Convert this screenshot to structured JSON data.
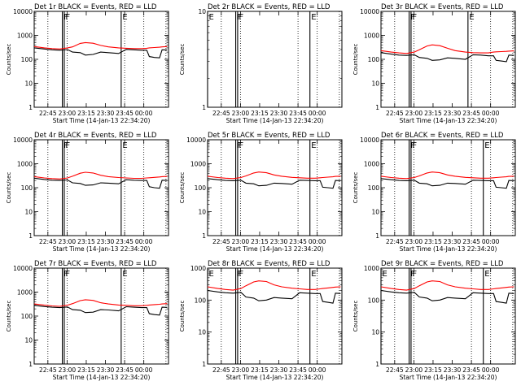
{
  "figure": {
    "xlabel": "Start Time (14-Jan-13 22:34:20)",
    "ylabel": "Counts/sec",
    "legend_note": "BLACK = Events, RED = LLD",
    "x_ticks": [
      "22:45",
      "23:00",
      "23:15",
      "23:30",
      "23:45",
      "00:00"
    ],
    "series_colors": {
      "events": "#000000",
      "lld": "#ff0000"
    }
  },
  "chart_data": [
    {
      "type": "line",
      "title": "Det 1r BLACK = Events, RED = LLD",
      "x_range_min": [
        0,
        105
      ],
      "ylim": [
        1,
        10000
      ],
      "yscale": "log",
      "y_ticks": [
        "1",
        "10",
        "100",
        "1000",
        "10000"
      ],
      "x": [
        0,
        8,
        14,
        20,
        26,
        30,
        36,
        40,
        46,
        52,
        58,
        66,
        72,
        78,
        84,
        88,
        90,
        94,
        98,
        100,
        104
      ],
      "series": [
        {
          "name": "Events",
          "values": [
            300,
            270,
            250,
            240,
            255,
            200,
            190,
            150,
            160,
            200,
            190,
            175,
            260,
            250,
            240,
            240,
            130,
            120,
            115,
            250,
            245
          ]
        },
        {
          "name": "LLD",
          "values": [
            340,
            300,
            280,
            270,
            300,
            330,
            460,
            500,
            470,
            380,
            330,
            300,
            290,
            280,
            280,
            290,
            300,
            310,
            320,
            330,
            340
          ]
        }
      ],
      "markers": [
        {
          "label": "F",
          "x_min": 22,
          "style": "solid"
        },
        {
          "label": "F",
          "x_min": 23.5,
          "style": "solid"
        },
        {
          "label": "E",
          "x_min": 68,
          "style": "solid"
        }
      ],
      "dotted_x_min": [
        10.7,
        25.7,
        70.7,
        85.7,
        103
      ]
    },
    {
      "type": "line",
      "title": "Det 2r BLACK = Events, RED = LLD",
      "x_range_min": [
        0,
        105
      ],
      "ylim": [
        1,
        10
      ],
      "yscale": "log",
      "y_ticks": [
        "1",
        "10"
      ],
      "x": [],
      "series": [],
      "markers": [
        {
          "label": "E",
          "x_min": 0,
          "style": "solid"
        },
        {
          "label": "F",
          "x_min": 22,
          "style": "solid"
        },
        {
          "label": "F",
          "x_min": 23.5,
          "style": "solid"
        },
        {
          "label": "E",
          "x_min": 80,
          "style": "solid"
        }
      ],
      "dotted_x_min": [
        10.7,
        25.7,
        70.7,
        85.7,
        103
      ]
    },
    {
      "type": "line",
      "title": "Det 3r BLACK = Events, RED = LLD",
      "x_range_min": [
        0,
        105
      ],
      "ylim": [
        1,
        10000
      ],
      "yscale": "log",
      "y_ticks": [
        "1",
        "10",
        "100",
        "1000",
        "10000"
      ],
      "x": [
        0,
        8,
        14,
        20,
        26,
        30,
        36,
        40,
        46,
        52,
        58,
        66,
        72,
        78,
        84,
        88,
        90,
        94,
        98,
        100,
        104
      ],
      "series": [
        {
          "name": "Events",
          "values": [
            190,
            165,
            150,
            145,
            155,
            120,
            110,
            90,
            95,
            115,
            110,
            100,
            155,
            150,
            140,
            140,
            90,
            85,
            80,
            150,
            145
          ]
        },
        {
          "name": "LLD",
          "values": [
            230,
            200,
            185,
            175,
            200,
            250,
            360,
            400,
            370,
            290,
            230,
            200,
            190,
            185,
            185,
            200,
            205,
            210,
            215,
            220,
            225
          ]
        }
      ],
      "markers": [
        {
          "label": "F",
          "x_min": 22,
          "style": "solid"
        },
        {
          "label": "F",
          "x_min": 23.5,
          "style": "solid"
        },
        {
          "label": "E",
          "x_min": 68,
          "style": "solid"
        }
      ],
      "dotted_x_min": [
        10.7,
        25.7,
        70.7,
        85.7,
        103
      ]
    },
    {
      "type": "line",
      "title": "Det 4r BLACK = Events, RED = LLD",
      "x_range_min": [
        0,
        105
      ],
      "ylim": [
        1,
        10000
      ],
      "yscale": "log",
      "y_ticks": [
        "1",
        "10",
        "100",
        "1000",
        "10000"
      ],
      "x": [
        0,
        8,
        14,
        20,
        26,
        30,
        36,
        40,
        46,
        52,
        58,
        66,
        72,
        78,
        84,
        88,
        90,
        94,
        98,
        100,
        104
      ],
      "series": [
        {
          "name": "Events",
          "values": [
            250,
            220,
            205,
            200,
            210,
            160,
            150,
            125,
            130,
            160,
            155,
            145,
            215,
            205,
            200,
            200,
            110,
            100,
            95,
            205,
            200
          ]
        },
        {
          "name": "LLD",
          "values": [
            290,
            255,
            240,
            230,
            255,
            300,
            400,
            440,
            410,
            330,
            290,
            265,
            255,
            245,
            245,
            255,
            260,
            270,
            280,
            290,
            295
          ]
        }
      ],
      "markers": [
        {
          "label": "F",
          "x_min": 22,
          "style": "solid"
        },
        {
          "label": "F",
          "x_min": 23.5,
          "style": "solid"
        },
        {
          "label": "E",
          "x_min": 68,
          "style": "solid"
        }
      ],
      "dotted_x_min": [
        10.7,
        25.7,
        70.7,
        85.7,
        103
      ]
    },
    {
      "type": "line",
      "title": "Det 5r BLACK = Events, RED = LLD",
      "x_range_min": [
        0,
        105
      ],
      "ylim": [
        1,
        10000
      ],
      "yscale": "log",
      "y_ticks": [
        "1",
        "10",
        "100",
        "1000",
        "10000"
      ],
      "x": [
        0,
        8,
        14,
        20,
        26,
        30,
        36,
        40,
        46,
        52,
        58,
        66,
        72,
        78,
        84,
        88,
        90,
        94,
        98,
        100,
        104
      ],
      "series": [
        {
          "name": "Events",
          "values": [
            240,
            215,
            200,
            195,
            205,
            155,
            145,
            120,
            125,
            155,
            150,
            140,
            205,
            200,
            195,
            195,
            105,
            100,
            95,
            200,
            195
          ]
        },
        {
          "name": "LLD",
          "values": [
            300,
            265,
            250,
            240,
            265,
            310,
            410,
            450,
            420,
            340,
            300,
            270,
            260,
            250,
            250,
            260,
            265,
            275,
            285,
            295,
            300
          ]
        }
      ],
      "markers": [
        {
          "label": "F",
          "x_min": 22,
          "style": "solid"
        },
        {
          "label": "F",
          "x_min": 23.5,
          "style": "solid"
        },
        {
          "label": "E",
          "x_min": 80,
          "style": "solid"
        }
      ],
      "dotted_x_min": [
        10.7,
        25.7,
        70.7,
        85.7,
        103
      ]
    },
    {
      "type": "line",
      "title": "Det 6r BLACK = Events, RED = LLD",
      "x_range_min": [
        0,
        105
      ],
      "ylim": [
        1,
        10000
      ],
      "yscale": "log",
      "y_ticks": [
        "1",
        "10",
        "100",
        "1000",
        "10000"
      ],
      "x": [
        0,
        8,
        14,
        20,
        26,
        30,
        36,
        40,
        46,
        52,
        58,
        66,
        72,
        78,
        84,
        88,
        90,
        94,
        98,
        100,
        104
      ],
      "series": [
        {
          "name": "Events",
          "values": [
            240,
            215,
            200,
            195,
            205,
            155,
            145,
            120,
            125,
            155,
            150,
            140,
            205,
            200,
            195,
            195,
            105,
            100,
            95,
            200,
            195
          ]
        },
        {
          "name": "LLD",
          "values": [
            300,
            265,
            250,
            240,
            265,
            310,
            410,
            450,
            420,
            340,
            300,
            270,
            260,
            250,
            250,
            260,
            265,
            275,
            285,
            295,
            300
          ]
        }
      ],
      "markers": [
        {
          "label": "F",
          "x_min": 22,
          "style": "solid"
        },
        {
          "label": "F",
          "x_min": 23.5,
          "style": "solid"
        },
        {
          "label": "E",
          "x_min": 80,
          "style": "solid"
        }
      ],
      "dotted_x_min": [
        10.7,
        25.7,
        70.7,
        85.7,
        103
      ]
    },
    {
      "type": "line",
      "title": "Det 7r BLACK = Events, RED = LLD",
      "x_range_min": [
        0,
        105
      ],
      "ylim": [
        1,
        10000
      ],
      "yscale": "log",
      "y_ticks": [
        "1",
        "10",
        "100",
        "1000",
        "10000"
      ],
      "x": [
        0,
        8,
        14,
        20,
        26,
        30,
        36,
        40,
        46,
        52,
        58,
        66,
        72,
        78,
        84,
        88,
        90,
        94,
        98,
        100,
        104
      ],
      "series": [
        {
          "name": "Events",
          "values": [
            280,
            250,
            235,
            225,
            240,
            185,
            175,
            140,
            145,
            185,
            180,
            165,
            245,
            235,
            225,
            225,
            125,
            115,
            110,
            235,
            230
          ]
        },
        {
          "name": "LLD",
          "values": [
            320,
            285,
            265,
            255,
            285,
            330,
            440,
            480,
            450,
            360,
            320,
            290,
            280,
            270,
            270,
            280,
            290,
            300,
            310,
            320,
            330
          ]
        }
      ],
      "markers": [
        {
          "label": "F",
          "x_min": 22,
          "style": "solid"
        },
        {
          "label": "F",
          "x_min": 23.5,
          "style": "solid"
        },
        {
          "label": "E",
          "x_min": 68,
          "style": "solid"
        }
      ],
      "dotted_x_min": [
        10.7,
        25.7,
        70.7,
        85.7,
        103
      ]
    },
    {
      "type": "line",
      "title": "Det 8r BLACK = Events, RED = LLD",
      "x_range_min": [
        0,
        105
      ],
      "ylim": [
        1,
        1000
      ],
      "yscale": "log",
      "y_ticks": [
        "1",
        "10",
        "100",
        "1000"
      ],
      "x": [
        0,
        8,
        14,
        20,
        26,
        30,
        36,
        40,
        46,
        52,
        58,
        66,
        72,
        78,
        84,
        88,
        90,
        94,
        98,
        100,
        104
      ],
      "series": [
        {
          "name": "Events",
          "values": [
            200,
            180,
            170,
            165,
            175,
            125,
            115,
            95,
            100,
            120,
            115,
            110,
            170,
            165,
            160,
            160,
            90,
            85,
            80,
            165,
            160
          ]
        },
        {
          "name": "LLD",
          "values": [
            260,
            230,
            215,
            205,
            230,
            280,
            370,
            400,
            380,
            300,
            260,
            235,
            225,
            215,
            215,
            225,
            230,
            240,
            250,
            255,
            260
          ]
        }
      ],
      "markers": [
        {
          "label": "E",
          "x_min": 0,
          "style": "solid"
        },
        {
          "label": "F",
          "x_min": 22,
          "style": "solid"
        },
        {
          "label": "F",
          "x_min": 23.5,
          "style": "solid"
        },
        {
          "label": "E",
          "x_min": 80,
          "style": "solid"
        }
      ],
      "dotted_x_min": [
        10.7,
        25.7,
        70.7,
        85.7,
        103
      ]
    },
    {
      "type": "line",
      "title": "Det 9r BLACK = Events, RED = LLD",
      "x_range_min": [
        0,
        105
      ],
      "ylim": [
        1,
        1000
      ],
      "yscale": "log",
      "y_ticks": [
        "1",
        "10",
        "100",
        "1000"
      ],
      "x": [
        0,
        8,
        14,
        20,
        26,
        30,
        36,
        40,
        46,
        52,
        58,
        66,
        72,
        78,
        84,
        88,
        90,
        94,
        98,
        100,
        104
      ],
      "series": [
        {
          "name": "Events",
          "values": [
            200,
            180,
            170,
            165,
            175,
            125,
            115,
            95,
            100,
            120,
            115,
            110,
            170,
            165,
            160,
            160,
            90,
            85,
            80,
            165,
            160
          ]
        },
        {
          "name": "LLD",
          "values": [
            260,
            230,
            215,
            205,
            230,
            280,
            370,
            400,
            380,
            300,
            260,
            235,
            225,
            215,
            215,
            225,
            230,
            240,
            250,
            255,
            260
          ]
        }
      ],
      "markers": [
        {
          "label": "E",
          "x_min": 0,
          "style": "solid"
        },
        {
          "label": "F",
          "x_min": 22,
          "style": "solid"
        },
        {
          "label": "F",
          "x_min": 23.5,
          "style": "solid"
        },
        {
          "label": "E",
          "x_min": 80,
          "style": "solid"
        }
      ],
      "dotted_x_min": [
        10.7,
        25.7,
        70.7,
        85.7,
        103
      ]
    }
  ]
}
